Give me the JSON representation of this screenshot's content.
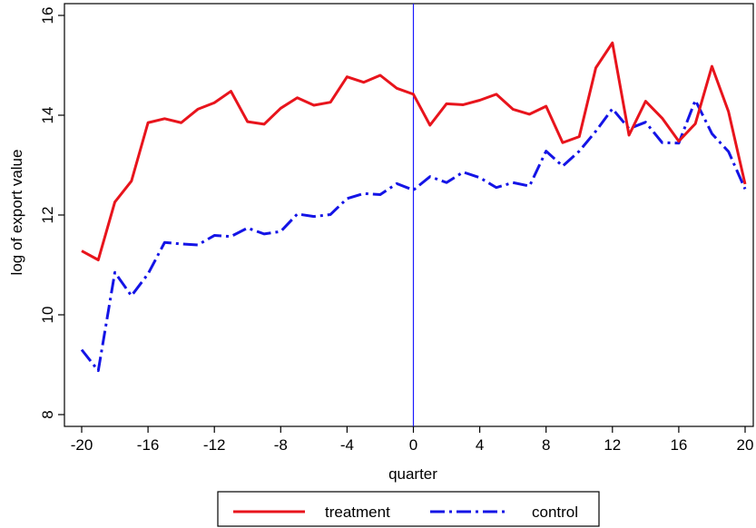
{
  "chart_data": {
    "type": "line",
    "title": "",
    "xlabel": "quarter",
    "ylabel": "log of export value",
    "xlim": [
      -20,
      20
    ],
    "ylim": [
      8,
      16
    ],
    "xticks": [
      -20,
      -16,
      -12,
      -8,
      -4,
      0,
      4,
      8,
      12,
      16,
      20
    ],
    "yticks": [
      8,
      10,
      12,
      14,
      16
    ],
    "xtick_labels": [
      "-20",
      "-16",
      "-12",
      "-8",
      "-4",
      "0",
      "4",
      "8",
      "12",
      "16",
      "20"
    ],
    "ytick_labels": [
      "8",
      "10",
      "12",
      "14",
      "16"
    ],
    "grid": false,
    "legend_position": "bottom",
    "reference_line": {
      "x": 0,
      "color": "#1a1aff"
    },
    "x": [
      -20,
      -19,
      -18,
      -17,
      -16,
      -15,
      -14,
      -13,
      -12,
      -11,
      -10,
      -9,
      -8,
      -7,
      -6,
      -5,
      -4,
      -3,
      -2,
      -1,
      0,
      1,
      2,
      3,
      4,
      5,
      6,
      7,
      8,
      9,
      10,
      11,
      12,
      13,
      14,
      15,
      16,
      17,
      18,
      19,
      20
    ],
    "series": [
      {
        "name": "treatment",
        "color": "#e8141c",
        "style": "solid",
        "values": [
          11.28,
          11.1,
          12.26,
          12.68,
          13.85,
          13.93,
          13.85,
          14.12,
          14.25,
          14.48,
          13.87,
          13.82,
          14.14,
          14.35,
          14.2,
          14.26,
          14.77,
          14.66,
          14.8,
          14.54,
          14.42,
          13.8,
          14.23,
          14.21,
          14.3,
          14.42,
          14.12,
          14.02,
          14.18,
          13.45,
          13.57,
          14.95,
          15.45,
          13.6,
          14.28,
          13.94,
          13.48,
          13.83,
          14.98,
          14.07,
          12.62
        ]
      },
      {
        "name": "control",
        "color": "#1414e6",
        "style": "dashdot",
        "values": [
          9.3,
          8.88,
          10.85,
          10.38,
          10.82,
          11.45,
          11.42,
          11.4,
          11.59,
          11.57,
          11.74,
          11.62,
          11.67,
          12.02,
          11.97,
          12.01,
          12.33,
          12.43,
          12.41,
          12.63,
          12.5,
          12.77,
          12.65,
          12.86,
          12.75,
          12.55,
          12.65,
          12.58,
          13.28,
          12.98,
          13.28,
          13.68,
          14.13,
          13.73,
          13.86,
          13.45,
          13.44,
          14.3,
          13.63,
          13.27,
          12.52
        ]
      }
    ]
  }
}
